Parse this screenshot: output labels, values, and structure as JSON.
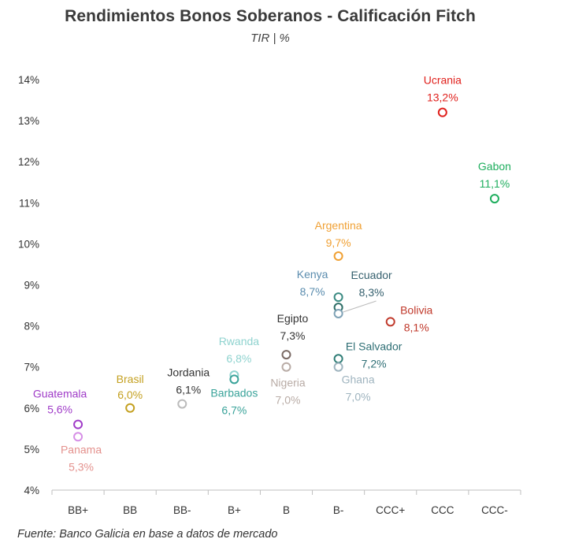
{
  "title": "Rendimientos Bonos Soberanos - Calificación Fitch",
  "subtitle": "TIR | %",
  "source": "Fuente: Banco Galicia en base a datos de mercado",
  "chart_data": {
    "type": "scatter",
    "title": "Rendimientos Bonos Soberanos - Calificación Fitch",
    "subtitle": "TIR | %",
    "xlabel": "",
    "ylabel": "",
    "categories": [
      "BB+",
      "BB",
      "BB-",
      "B+",
      "B",
      "B-",
      "CCC+",
      "CCC",
      "CCC-"
    ],
    "ylim": [
      4,
      14
    ],
    "y_ticks": [
      "4%",
      "5%",
      "6%",
      "7%",
      "8%",
      "9%",
      "10%",
      "11%",
      "12%",
      "13%",
      "14%"
    ],
    "grid": false,
    "legend": "none",
    "points": [
      {
        "name": "Guatemala",
        "category": "BB+",
        "value": 5.6,
        "label": "5,6%",
        "color": "#a03cc8",
        "value_color": "#a03cc8"
      },
      {
        "name": "Panama",
        "category": "BB+",
        "value": 5.3,
        "label": "5,3%",
        "color": "#d68fe6",
        "name_color": "#e4928e",
        "value_color": "#e4928e"
      },
      {
        "name": "Brasil",
        "category": "BB",
        "value": 6.0,
        "label": "6,0%",
        "color": "#c4a020",
        "value_color": "#c4a020"
      },
      {
        "name": "Jordania",
        "category": "BB-",
        "value": 6.1,
        "label": "6,1%",
        "color": "#bbbbbb",
        "name_color": "#333333",
        "value_color": "#333333"
      },
      {
        "name": "Rwanda",
        "category": "B+",
        "value": 6.8,
        "label": "6,8%",
        "color": "#8fd3cf",
        "value_color": "#8fd3cf"
      },
      {
        "name": "Barbados",
        "category": "B+",
        "value": 6.7,
        "label": "6,7%",
        "color": "#3aa39a",
        "value_color": "#3aa39a"
      },
      {
        "name": "Egipto",
        "category": "B",
        "value": 7.3,
        "label": "7,3%",
        "color": "#7a6a64",
        "name_color": "#333333",
        "value_color": "#333333"
      },
      {
        "name": "Nigeria",
        "category": "B",
        "value": 7.0,
        "label": "7,0%",
        "color": "#b9aca6",
        "value_color": "#b9aca6"
      },
      {
        "name": "Argentina",
        "category": "B-",
        "value": 9.7,
        "label": "9,7%",
        "color": "#f0a033",
        "value_color": "#f0a033"
      },
      {
        "name": "Kenya",
        "category": "B-",
        "value": 8.7,
        "label": "8,7%",
        "color": "#3a8a82",
        "name_color": "#5a8cae",
        "value_color": "#5a8cae"
      },
      {
        "name": "Ecuador",
        "category": "B-",
        "value": 8.3,
        "label": "8,3%",
        "color": "#7fa2b6",
        "name_color": "#35606e",
        "value_color": "#35606e"
      },
      {
        "name": "El Salvador",
        "category": "B-",
        "value": 7.2,
        "label": "7,2%",
        "color": "#2f7d76",
        "name_color": "#2f6f75",
        "value_color": "#2f6f75"
      },
      {
        "name": "Ghana",
        "category": "B-",
        "value": 7.0,
        "label": "7,0%",
        "color": "#9fb4bf",
        "value_color": "#9fb4bf"
      },
      {
        "name": "Bolivia",
        "category": "CCC+",
        "value": 8.1,
        "label": "8,1%",
        "color": "#c0392b",
        "value_color": "#c0392b"
      },
      {
        "name": "Ucrania",
        "category": "CCC",
        "value": 13.2,
        "label": "13,2%",
        "color": "#e0201c",
        "value_color": "#e0201c"
      },
      {
        "name": "Gabon",
        "category": "CCC-",
        "value": 11.1,
        "label": "11,1%",
        "color": "#1fae5e",
        "value_color": "#1fae5e"
      }
    ],
    "extra_markers": [
      {
        "category": "B-",
        "value": 8.45,
        "color": "#2f6f68"
      }
    ]
  }
}
